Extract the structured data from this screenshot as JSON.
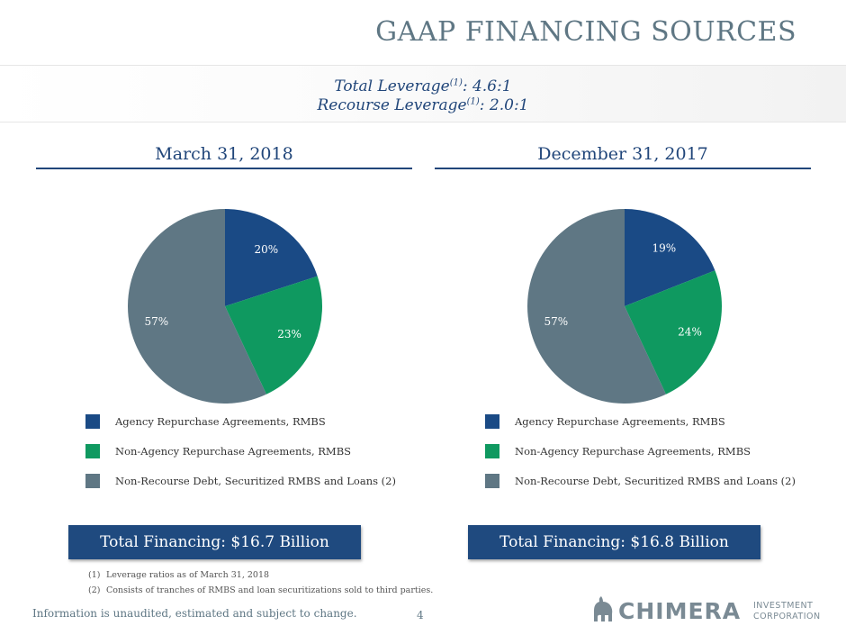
{
  "title": "GAAP FINANCING SOURCES",
  "leverage": {
    "total_label": "Total Leverage",
    "total_sup": "(1)",
    "total_value": ":  4.6:1",
    "recourse_label": "Recourse Leverage",
    "recourse_sup": "(1)",
    "recourse_value": ":  2.0:1"
  },
  "chart_data": [
    {
      "type": "pie",
      "title": "March 31, 2018",
      "categories": [
        "Agency Repurchase Agreements, RMBS",
        "Non-Agency Repurchase Agreements, RMBS",
        "Non-Recourse Debt, Securitized RMBS and Loans (2)"
      ],
      "values": [
        20,
        23,
        57
      ],
      "labels": [
        "20%",
        "23%",
        "57%"
      ],
      "colors": [
        "#1a4a85",
        "#0f9960",
        "#5f7784"
      ],
      "total": "Total Financing: $16.7 Billion"
    },
    {
      "type": "pie",
      "title": "December 31, 2017",
      "categories": [
        "Agency Repurchase Agreements, RMBS",
        "Non-Agency Repurchase Agreements, RMBS",
        "Non-Recourse Debt, Securitized RMBS and Loans (2)"
      ],
      "values": [
        19,
        24,
        57
      ],
      "labels": [
        "19%",
        "24%",
        "57%"
      ],
      "colors": [
        "#1a4a85",
        "#0f9960",
        "#5f7784"
      ],
      "total": "Total Financing: $16.8 Billion"
    }
  ],
  "footnotes": [
    {
      "num": "(1)",
      "text": "Leverage ratios as of March 31, 2018"
    },
    {
      "num": "(2)",
      "text": "Consists of tranches of RMBS and loan securitizations sold to third parties."
    }
  ],
  "disclaimer": "Information is unaudited, estimated and subject to change.",
  "page_number": "4",
  "logo": {
    "main": "CHIMERA",
    "sub_1": "INVESTMENT",
    "sub_2": "CORPORATION"
  }
}
